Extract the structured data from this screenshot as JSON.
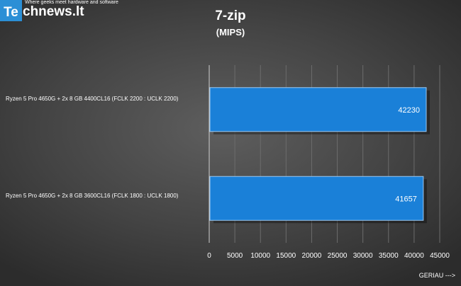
{
  "logo": {
    "lead": "Te",
    "rest": "chnews.lt",
    "tagline": "Where geeks meet hardware and software"
  },
  "chart_data": {
    "type": "bar",
    "orientation": "horizontal",
    "title": "7-zip",
    "subtitle": "(MIPS)",
    "xlabel": "GERIAU --->",
    "ylabel": "",
    "categories": [
      "Ryzen 5 Pro 4650G + 2x 8 GB 4400CL16 (FCLK 2200 : UCLK 2200)",
      "Ryzen 5 Pro 4650G + 2x 8 GB 3600CL16 (FCLK 1800 : UCLK 1800)"
    ],
    "values": [
      42230,
      41657
    ],
    "data_labels": [
      "42230",
      "41657"
    ],
    "xlim": [
      0,
      45000
    ],
    "xticks": [
      0,
      5000,
      10000,
      15000,
      20000,
      25000,
      30000,
      35000,
      40000,
      45000
    ],
    "grid": true,
    "legend": "none",
    "colors": {
      "bar": "#1a80d8",
      "bar_border": "#9cc8f0",
      "text": "#ffffff"
    }
  }
}
